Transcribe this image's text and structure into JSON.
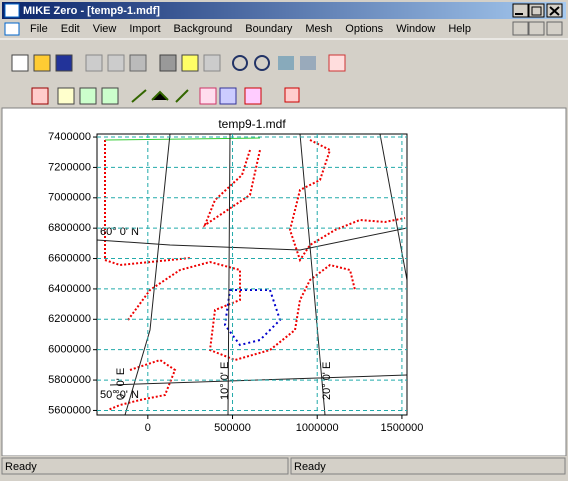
{
  "window": {
    "title": "MIKE Zero - [temp9-1.mdf]"
  },
  "menu": [
    "File",
    "Edit",
    "View",
    "Import",
    "Background",
    "Boundary",
    "Mesh",
    "Options",
    "Window",
    "Help"
  ],
  "plot": {
    "title": "temp9-1.mdf",
    "xlim": [
      -300000,
      1530000
    ],
    "ylim": [
      5570000,
      7420000
    ],
    "xticks": [
      0,
      500000,
      1000000,
      1500000
    ],
    "yticks": [
      5600000,
      5800000,
      6000000,
      6200000,
      6400000,
      6600000,
      6800000,
      7000000,
      7200000,
      7400000
    ],
    "grid": true,
    "graticule_labels": [
      "60° 0' N",
      "50° 0' N",
      "0° 0' E",
      "10° 0' E",
      "20° 0' E"
    ]
  },
  "status_bar": [
    "Ready",
    "Ready"
  ]
}
